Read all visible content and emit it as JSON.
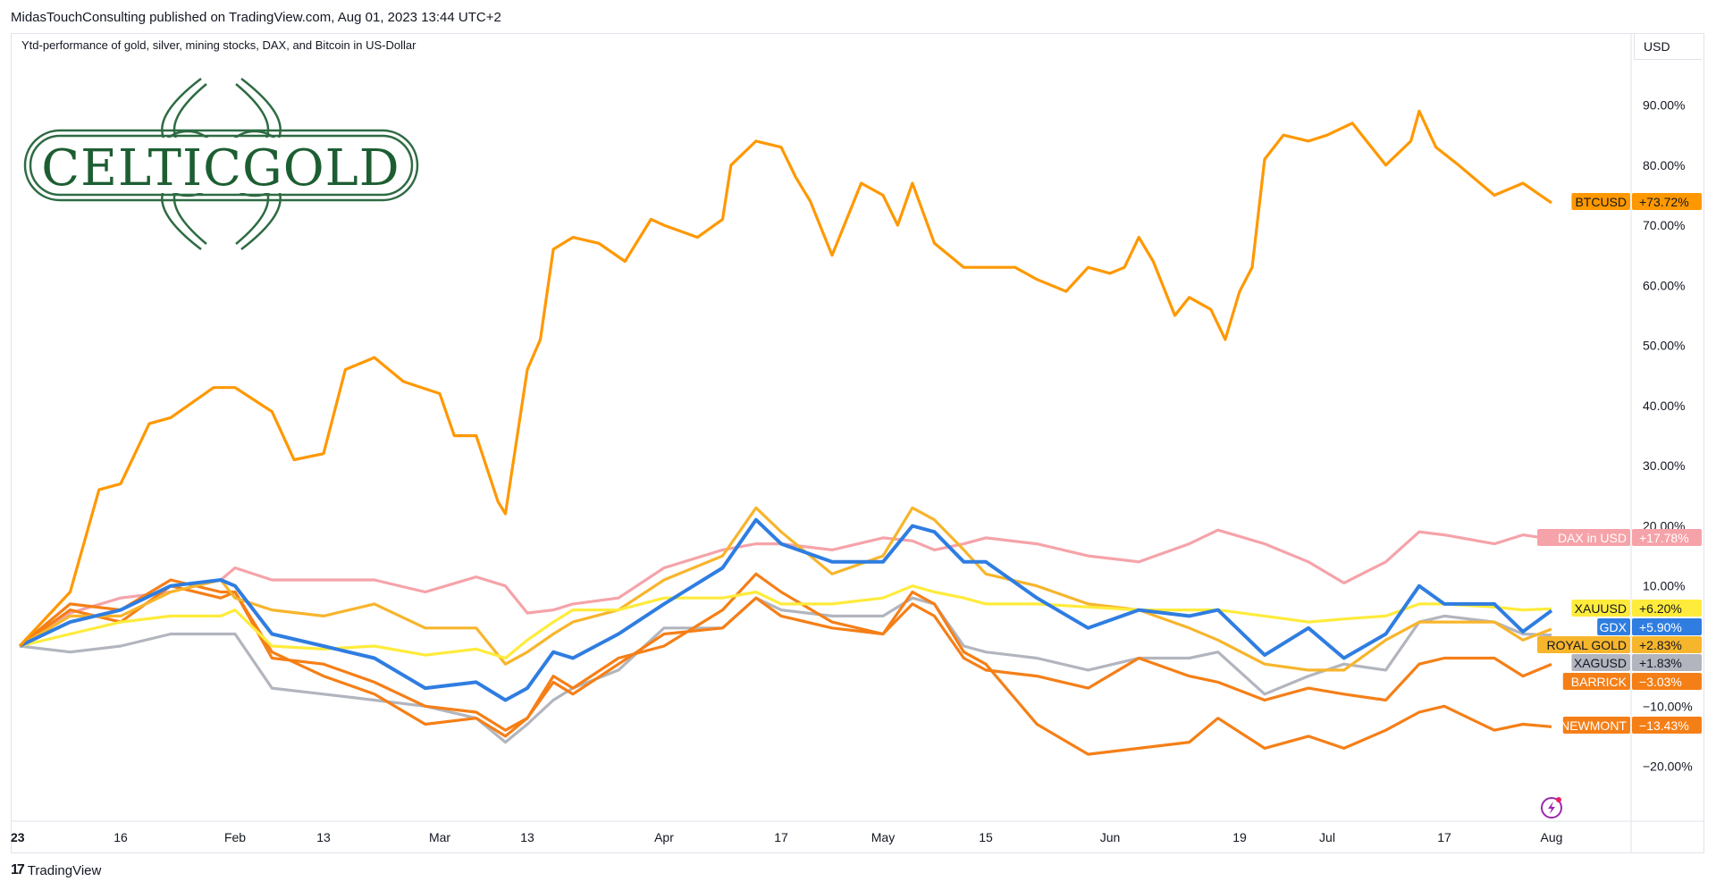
{
  "header": {
    "published": "MidasTouchConsulting published on TradingView.com, Aug 01, 2023 13:44 UTC+2",
    "title": "Ytd-performance of gold, silver, mining stocks, DAX, and Bitcoin in US-Dollar",
    "currency": "USD"
  },
  "logo": {
    "text": "CELTICGOLD",
    "color": "#1c5e32"
  },
  "footer": {
    "brand": "TradingView",
    "mark": "17"
  },
  "chart_data": {
    "type": "line",
    "title": "Ytd-performance of gold, silver, mining stocks, DAX, and Bitcoin in US-Dollar",
    "ylabel": "",
    "xlabel": "",
    "ylim": [
      -27,
      97
    ],
    "y_ticks": [
      "90.00%",
      "80.00%",
      "70.00%",
      "60.00%",
      "50.00%",
      "40.00%",
      "30.00%",
      "20.00%",
      "10.00%",
      "−10.00%",
      "−20.00%"
    ],
    "y_tick_values": [
      90,
      80,
      70,
      60,
      50,
      40,
      30,
      20,
      10,
      -10,
      -20
    ],
    "x_ticks": [
      {
        "label": "23",
        "date": "2023-01-02"
      },
      {
        "label": "16",
        "date": "2023-01-16"
      },
      {
        "label": "Feb",
        "date": "2023-02-01"
      },
      {
        "label": "13",
        "date": "2023-02-13"
      },
      {
        "label": "Mar",
        "date": "2023-03-01"
      },
      {
        "label": "13",
        "date": "2023-03-13"
      },
      {
        "label": "Apr",
        "date": "2023-04-03"
      },
      {
        "label": "17",
        "date": "2023-04-17"
      },
      {
        "label": "May",
        "date": "2023-05-01"
      },
      {
        "label": "15",
        "date": "2023-05-15"
      },
      {
        "label": "Jun",
        "date": "2023-06-01"
      },
      {
        "label": "19",
        "date": "2023-06-19"
      },
      {
        "label": "Jul",
        "date": "2023-07-03"
      },
      {
        "label": "17",
        "date": "2023-07-17"
      },
      {
        "label": "Aug",
        "date": "2023-08-01"
      }
    ],
    "grid": false,
    "legend": "right-axis labels",
    "x": [
      "2023-01-02",
      "2023-01-09",
      "2023-01-16",
      "2023-01-23",
      "2023-01-30",
      "2023-02-01",
      "2023-02-06",
      "2023-02-13",
      "2023-02-20",
      "2023-02-27",
      "2023-03-06",
      "2023-03-10",
      "2023-03-13",
      "2023-03-17",
      "2023-03-20",
      "2023-03-27",
      "2023-04-03",
      "2023-04-10",
      "2023-04-14",
      "2023-04-17",
      "2023-04-24",
      "2023-05-01",
      "2023-05-05",
      "2023-05-08",
      "2023-05-12",
      "2023-05-15",
      "2023-05-22",
      "2023-05-29",
      "2023-06-05",
      "2023-06-12",
      "2023-06-16",
      "2023-06-23",
      "2023-06-30",
      "2023-07-05",
      "2023-07-10",
      "2023-07-14",
      "2023-07-17",
      "2023-07-24",
      "2023-07-28",
      "2023-08-01"
    ],
    "series": [
      {
        "name": "DAX in USD",
        "last": "+17.78%",
        "color": "#f5a3a9",
        "text_color": "#ffffff",
        "values": [
          0,
          5.5,
          8,
          9,
          11,
          13,
          11,
          11,
          11,
          9,
          11.5,
          10,
          5.5,
          6,
          7,
          8,
          13,
          16,
          17,
          17,
          16,
          18,
          17.5,
          16,
          17,
          18,
          17,
          15,
          14,
          17,
          19.3,
          17,
          14,
          10.5,
          14,
          19,
          18.5,
          17,
          18.5,
          17.78
        ]
      },
      {
        "name": "XAGUSD",
        "last": "+1.83%",
        "color": "#b2b5be",
        "text_color": "#131722",
        "values": [
          0,
          -1,
          0,
          2,
          2,
          2,
          -7,
          -8,
          -9,
          -10,
          -12,
          -16,
          -13,
          -9,
          -7,
          -4,
          3,
          3,
          8,
          6,
          5,
          5,
          8,
          7,
          0,
          -1,
          -2,
          -4,
          -2,
          -2,
          -1,
          -8,
          -5,
          -3,
          -4,
          4,
          5,
          4,
          2,
          1.83
        ]
      },
      {
        "name": "NEWMONT",
        "last": "−13.43%",
        "color": "#f57f17",
        "text_color": "#ffffff",
        "values": [
          0,
          7,
          6,
          11,
          9,
          9,
          -1,
          -5,
          -8,
          -13,
          -12,
          -15,
          -12,
          -5,
          -7,
          -2,
          0,
          6,
          12,
          9,
          4,
          2,
          9,
          7,
          -1,
          -3,
          -13,
          -18,
          -17,
          -16,
          -12,
          -17,
          -15,
          -17,
          -14,
          -11,
          -10,
          -14,
          -13,
          -13.43
        ]
      },
      {
        "name": "BARRICK",
        "last": "−3.03%",
        "color": "#f57f17",
        "text_color": "#ffffff",
        "values": [
          0,
          6,
          4,
          10,
          8,
          9,
          -2,
          -3,
          -6,
          -10,
          -11,
          -14,
          -12,
          -6,
          -8,
          -3,
          2,
          3,
          8,
          5,
          3,
          2,
          7,
          5,
          -2,
          -4,
          -5,
          -7,
          -2,
          -5,
          -6,
          -9,
          -7,
          -8,
          -9,
          -3,
          -2,
          -2,
          -5,
          -3.03
        ]
      },
      {
        "name": "ROYAL GOLD",
        "last": "+2.83%",
        "color": "#f7b52c",
        "text_color": "#131722",
        "values": [
          0,
          5,
          5,
          9,
          11,
          8,
          6,
          5,
          7,
          3,
          3,
          -3,
          -1,
          2,
          4,
          6,
          11,
          15,
          23,
          19,
          12,
          15,
          23,
          21,
          16,
          12,
          10,
          7,
          6,
          3,
          1,
          -3,
          -4,
          -4,
          1,
          4,
          4,
          4,
          1,
          2.83
        ]
      },
      {
        "name": "XAUUSD",
        "last": "+6.20%",
        "color": "#ffeb3b",
        "text_color": "#131722",
        "values": [
          0,
          2,
          4,
          5,
          5,
          6,
          0,
          -0.5,
          0,
          -1.5,
          -0.5,
          -2,
          1,
          4,
          6,
          6,
          8,
          8,
          9,
          7,
          7,
          8,
          10,
          9,
          8,
          7,
          7,
          6.5,
          6,
          6,
          6,
          5,
          4,
          4.5,
          5,
          7,
          7,
          6.5,
          6,
          6.2
        ]
      },
      {
        "name": "GDX",
        "last": "+5.90%",
        "color": "#2f7de1",
        "text_color": "#ffffff",
        "values": [
          0,
          4,
          6,
          10,
          11,
          10,
          2,
          0,
          -2,
          -7,
          -6,
          -9,
          -7,
          -1,
          -2,
          2,
          7,
          13,
          21,
          17,
          14,
          14,
          20,
          19,
          14,
          14,
          8,
          3,
          6,
          5,
          6,
          -1.5,
          3,
          -2,
          2,
          10,
          7,
          7,
          2.4,
          5.9
        ]
      },
      {
        "name": "BTCUSD",
        "last": "+73.72%",
        "color": "#ff9800",
        "text_color": "#131722",
        "x": [
          "2023-01-02",
          "2023-01-09",
          "2023-01-13",
          "2023-01-16",
          "2023-01-20",
          "2023-01-23",
          "2023-01-29",
          "2023-02-01",
          "2023-02-06",
          "2023-02-09",
          "2023-02-13",
          "2023-02-16",
          "2023-02-20",
          "2023-02-24",
          "2023-03-01",
          "2023-03-03",
          "2023-03-06",
          "2023-03-09",
          "2023-03-10",
          "2023-03-13",
          "2023-03-15",
          "2023-03-17",
          "2023-03-20",
          "2023-03-24",
          "2023-03-28",
          "2023-04-01",
          "2023-04-03",
          "2023-04-07",
          "2023-04-10",
          "2023-04-11",
          "2023-04-14",
          "2023-04-17",
          "2023-04-19",
          "2023-04-21",
          "2023-04-24",
          "2023-04-28",
          "2023-05-01",
          "2023-05-03",
          "2023-05-05",
          "2023-05-08",
          "2023-05-12",
          "2023-05-15",
          "2023-05-19",
          "2023-05-22",
          "2023-05-26",
          "2023-05-29",
          "2023-06-01",
          "2023-06-03",
          "2023-06-05",
          "2023-06-07",
          "2023-06-10",
          "2023-06-12",
          "2023-06-15",
          "2023-06-17",
          "2023-06-19",
          "2023-06-21",
          "2023-06-23",
          "2023-06-26",
          "2023-06-30",
          "2023-07-03",
          "2023-07-06",
          "2023-07-10",
          "2023-07-13",
          "2023-07-14",
          "2023-07-16",
          "2023-07-19",
          "2023-07-24",
          "2023-07-28",
          "2023-08-01"
        ],
        "values": [
          0,
          9,
          26,
          27,
          37,
          38,
          43,
          43,
          39,
          31,
          32,
          46,
          48,
          44,
          42,
          35,
          35,
          24,
          22,
          46,
          51,
          66,
          68,
          67,
          64,
          71,
          70,
          68,
          71,
          80,
          84,
          83,
          78,
          74,
          65,
          77,
          75,
          70,
          77,
          67,
          63,
          63,
          63,
          61,
          59,
          63,
          62,
          63,
          68,
          64,
          55,
          58,
          56,
          51,
          59,
          63,
          81,
          85,
          84,
          85,
          87,
          80,
          84,
          89,
          83,
          80,
          75,
          77,
          73.72
        ]
      }
    ]
  }
}
